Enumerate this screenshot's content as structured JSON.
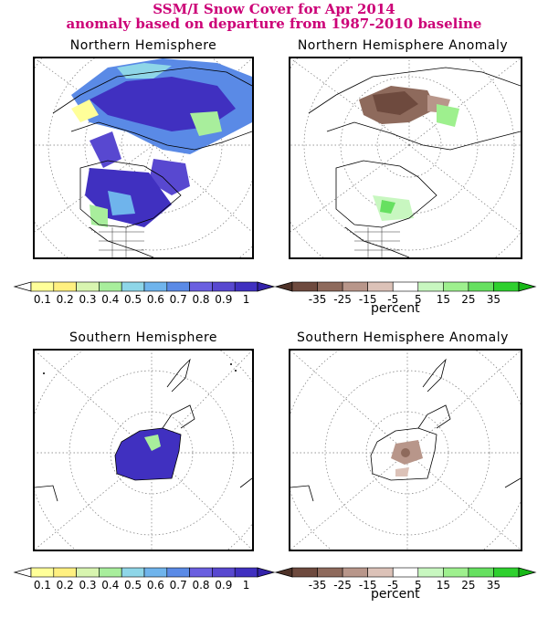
{
  "header": {
    "line1": "SSM/I Snow Cover for Apr 2014",
    "line2": "anomaly based on departure from 1987-2010 baseline"
  },
  "panels": {
    "nh": {
      "title": "Northern Hemisphere"
    },
    "nh_anom": {
      "title": "Northern Hemisphere Anomaly"
    },
    "sh": {
      "title": "Southern Hemisphere"
    },
    "sh_anom": {
      "title": "Southern Hemisphere Anomaly"
    }
  },
  "cover_scale": {
    "labels": [
      "0.1",
      "0.2",
      "0.3",
      "0.4",
      "0.5",
      "0.6",
      "0.7",
      "0.8",
      "0.9",
      "1"
    ],
    "colors": [
      "#ffff99",
      "#fff080",
      "#d8f5b0",
      "#a8ee9c",
      "#8ed6e8",
      "#6fb4ec",
      "#5a8ae6",
      "#6a5fe0",
      "#5848d0",
      "#4030c0"
    ],
    "end_colors": [
      "#ffffff",
      "#3322aa"
    ]
  },
  "anomaly_scale": {
    "labels": [
      "-35",
      "-25",
      "-15",
      "-5",
      "5",
      "15",
      "25",
      "35"
    ],
    "colors": [
      "#6e4a3e",
      "#8e6a5c",
      "#b8968a",
      "#dcc2b8",
      "#ffffff",
      "#c8f7c0",
      "#9ef08e",
      "#66e060",
      "#2ed02e"
    ],
    "end_colors": [
      "#4e3228",
      "#18b818"
    ],
    "units": "percent"
  }
}
